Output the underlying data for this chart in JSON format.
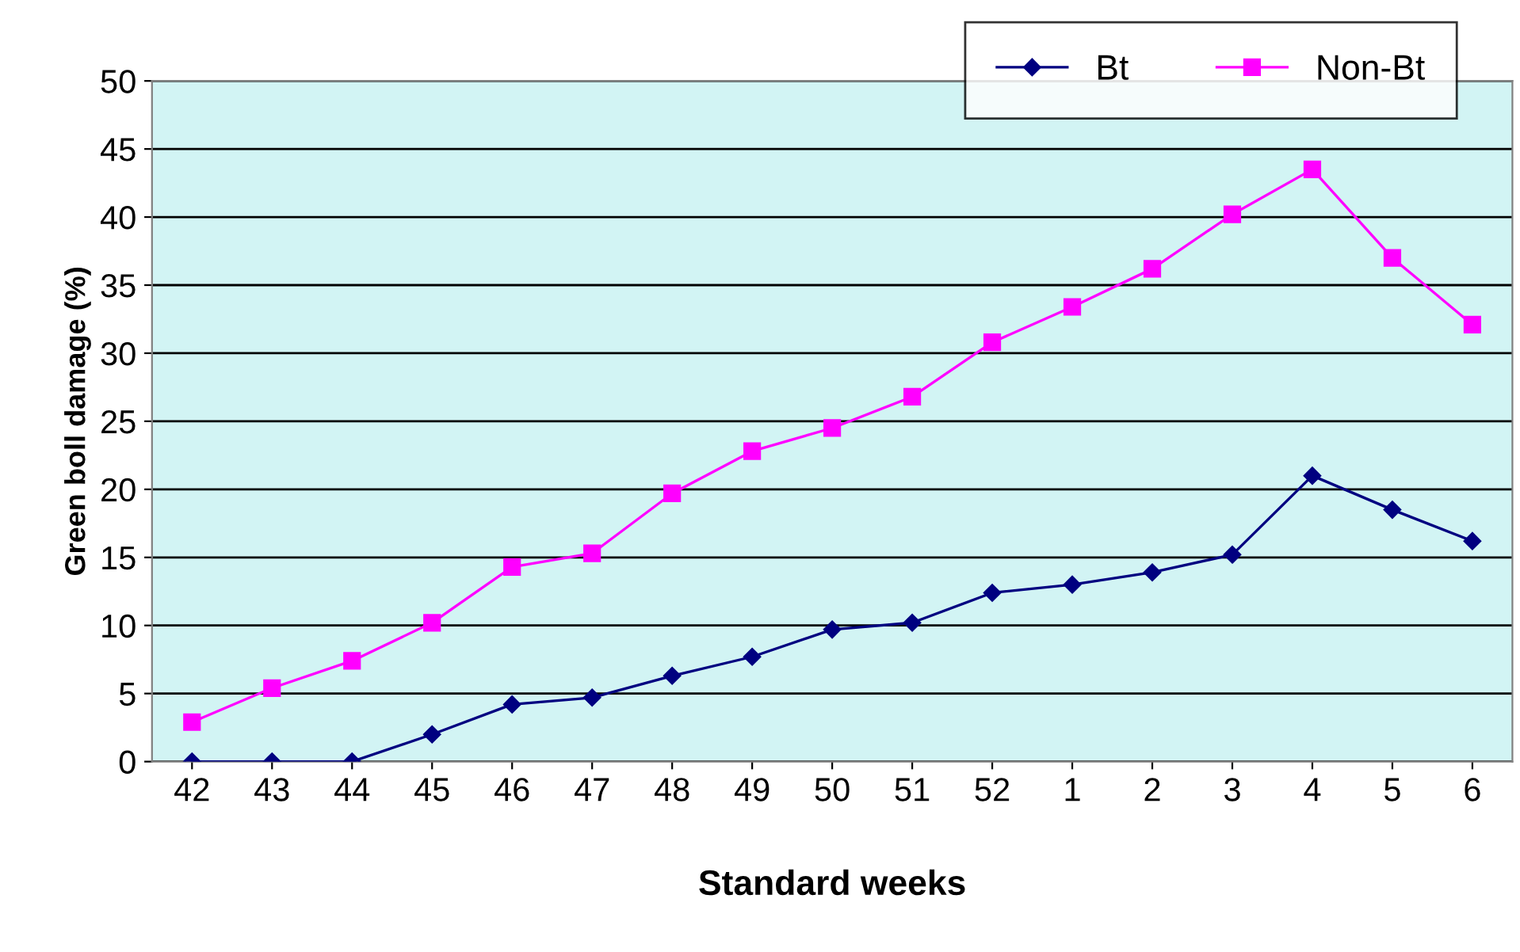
{
  "chart_data": {
    "type": "line",
    "xlabel": "Standard weeks",
    "ylabel": "Green boll damage (%)",
    "categories": [
      "42",
      "43",
      "44",
      "45",
      "46",
      "47",
      "48",
      "49",
      "50",
      "51",
      "52",
      "1",
      "2",
      "3",
      "4",
      "5",
      "6"
    ],
    "series": [
      {
        "name": "Bt",
        "color": "#000080",
        "marker": "diamond",
        "values": [
          0,
          0,
          0,
          2.0,
          4.2,
          4.7,
          6.3,
          7.7,
          9.7,
          10.2,
          12.4,
          13.0,
          13.9,
          15.2,
          21.0,
          18.5,
          16.2
        ]
      },
      {
        "name": "Non-Bt",
        "color": "#ff00ff",
        "marker": "square",
        "values": [
          2.9,
          5.4,
          7.4,
          10.2,
          14.3,
          15.3,
          19.7,
          22.8,
          24.5,
          26.8,
          30.8,
          33.4,
          36.2,
          40.2,
          43.5,
          37.0,
          32.1
        ]
      }
    ],
    "ylim": [
      0,
      50
    ],
    "yticks": [
      0,
      5,
      10,
      15,
      20,
      25,
      30,
      35,
      40,
      45,
      50
    ],
    "grid": "y",
    "legend": "top right",
    "line_style": "solid"
  }
}
